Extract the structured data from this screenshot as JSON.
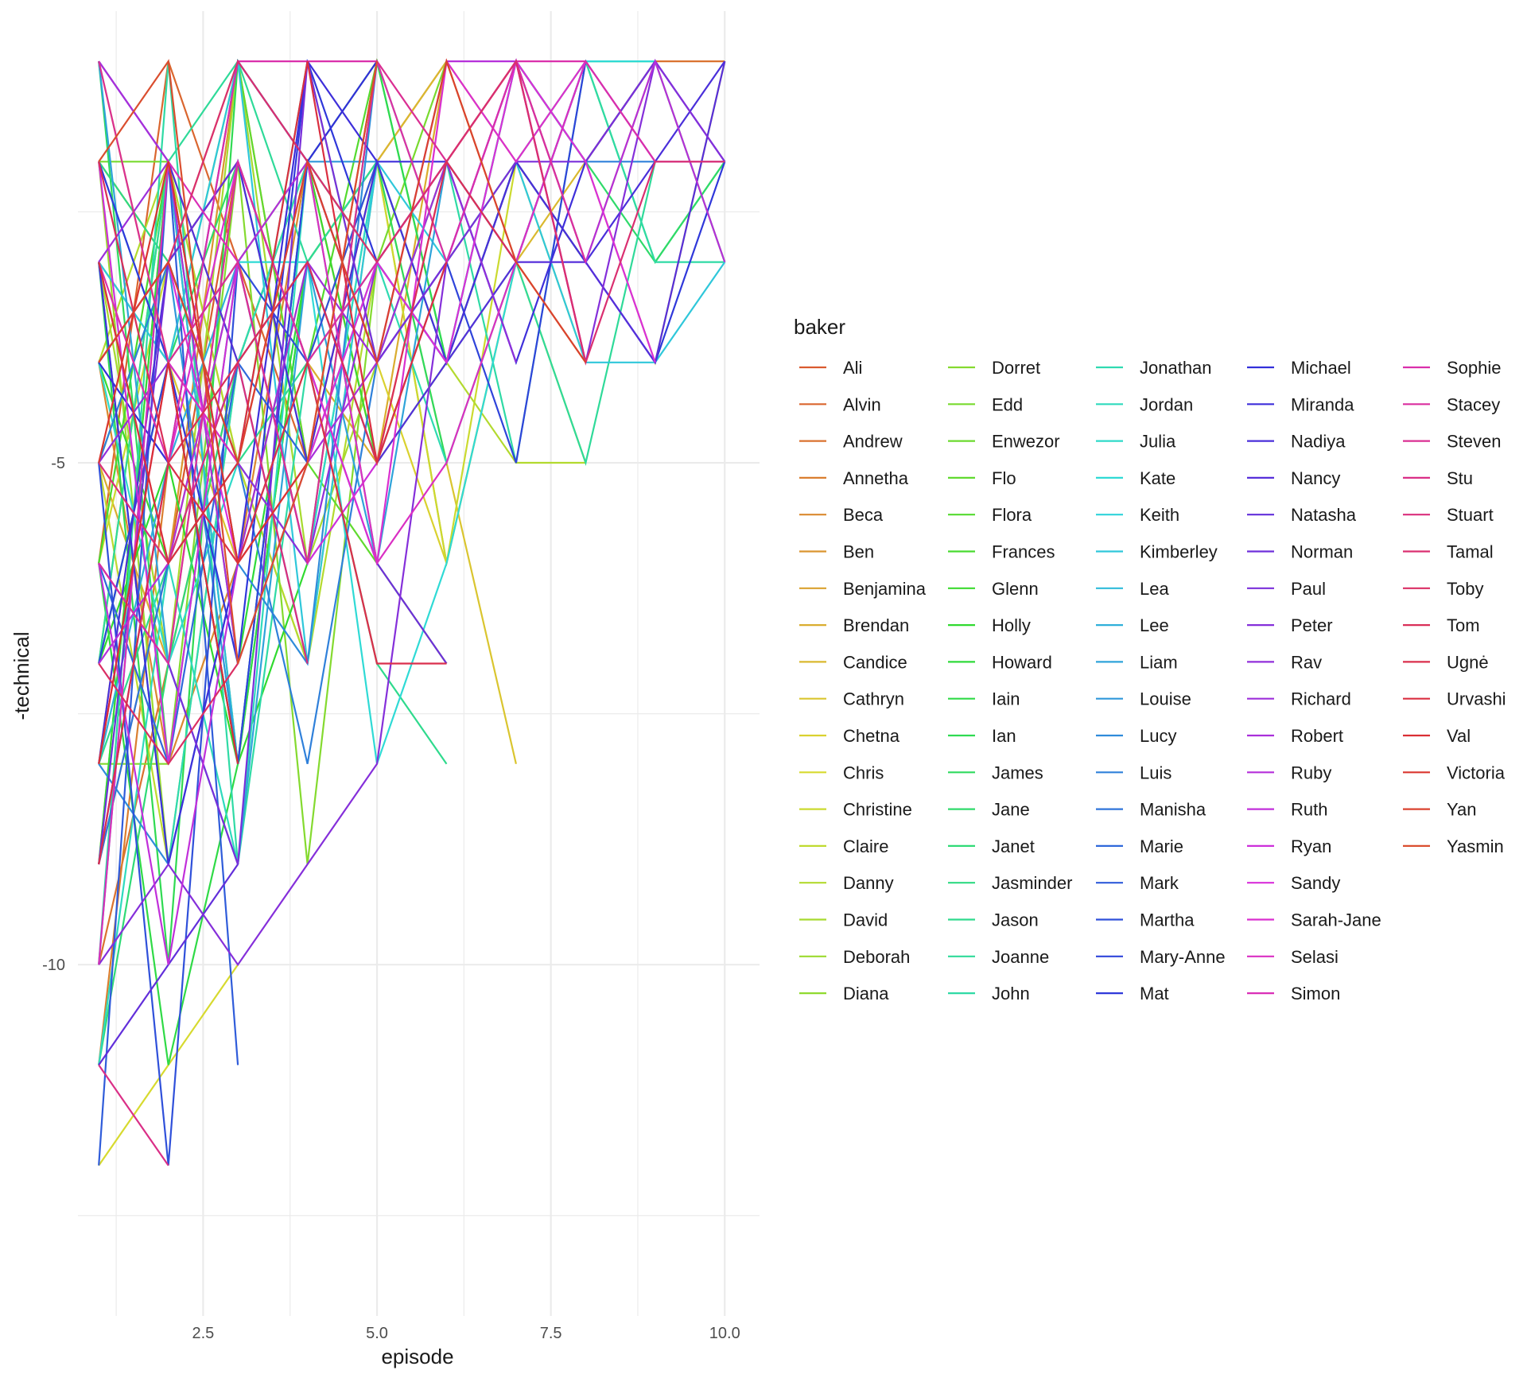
{
  "chart_data": {
    "type": "line",
    "xlabel": "episode",
    "ylabel": "-technical",
    "x_ticks": [
      2.5,
      5.0,
      7.5,
      10.0
    ],
    "x_tick_labels": [
      "2.5",
      "5.0",
      "7.5",
      "10.0"
    ],
    "y_ticks": [
      -5,
      -10
    ],
    "y_tick_labels": [
      "-5",
      "-10"
    ],
    "xlim": [
      0.7,
      10.5
    ],
    "ylim": [
      -13.5,
      -0.5
    ],
    "grid": true,
    "legend_title": "baker",
    "legend_position": "right",
    "bakers": [
      "Ali",
      "Alvin",
      "Andrew",
      "Annetha",
      "Beca",
      "Ben",
      "Benjamina",
      "Brendan",
      "Candice",
      "Cathryn",
      "Chetna",
      "Chris",
      "Christine",
      "Claire",
      "Danny",
      "David",
      "Deborah",
      "Diana",
      "Dorret",
      "Edd",
      "Enwezor",
      "Flo",
      "Flora",
      "Frances",
      "Glenn",
      "Holly",
      "Howard",
      "Iain",
      "Ian",
      "James",
      "Jane",
      "Janet",
      "Jasminder",
      "Jason",
      "Joanne",
      "John",
      "Jonathan",
      "Jordan",
      "Julia",
      "Kate",
      "Keith",
      "Kimberley",
      "Lea",
      "Lee",
      "Liam",
      "Louise",
      "Lucy",
      "Luis",
      "Manisha",
      "Marie",
      "Mark",
      "Martha",
      "Mary-Anne",
      "Mat",
      "Michael",
      "Miranda",
      "Nadiya",
      "Nancy",
      "Natasha",
      "Norman",
      "Paul",
      "Peter",
      "Rav",
      "Richard",
      "Robert",
      "Ruby",
      "Ruth",
      "Ryan",
      "Sandy",
      "Sarah-Jane",
      "Selasi",
      "Simon",
      "Sophie",
      "Stacey",
      "Steven",
      "Stu",
      "Stuart",
      "Tamal",
      "Toby",
      "Tom",
      "Ugnė",
      "Urvashi",
      "Val",
      "Victoria",
      "Yan",
      "Yasmin"
    ],
    "series": [
      {
        "name": "Ali",
        "values": [
          -3,
          -6,
          -2,
          -4,
          -7
        ]
      },
      {
        "name": "Alvin",
        "values": [
          -6,
          -1,
          -3,
          -5,
          -2,
          -1
        ]
      },
      {
        "name": "Andrew",
        "values": [
          -10,
          -7,
          -4,
          -2,
          -3,
          -2,
          -1,
          -2,
          -1,
          -1
        ]
      },
      {
        "name": "Annetha",
        "values": [
          -11,
          -5
        ]
      },
      {
        "name": "Beca",
        "values": [
          -4,
          -8,
          -6,
          -2,
          -5,
          -2,
          -3
        ]
      },
      {
        "name": "Ben",
        "values": [
          -9,
          -6,
          -1
        ]
      },
      {
        "name": "Benjamina",
        "values": [
          -2,
          -3,
          -1,
          -5,
          -2,
          -6,
          -3,
          -4
        ]
      },
      {
        "name": "Brendan",
        "values": [
          -5,
          -7,
          -2,
          -4,
          -5,
          -1,
          -2,
          -3,
          -1
        ]
      },
      {
        "name": "Candice",
        "values": [
          -9,
          -2,
          -5,
          -7,
          -2,
          -1,
          -3,
          -2,
          -4,
          -1
        ]
      },
      {
        "name": "Cathryn",
        "values": [
          -1,
          -4,
          -6,
          -3,
          -2,
          -5,
          -8
        ]
      },
      {
        "name": "Chetna",
        "values": [
          -8,
          -3,
          -5,
          -2,
          -4,
          -6,
          -3,
          -5
        ]
      },
      {
        "name": "Chris",
        "values": [
          -12,
          -11,
          -10
        ]
      },
      {
        "name": "Christine",
        "values": [
          -6,
          -3,
          -2,
          -4,
          -2,
          -6,
          -2,
          -4
        ]
      },
      {
        "name": "Claire",
        "values": [
          -5,
          -9
        ]
      },
      {
        "name": "Danny",
        "values": [
          -4,
          -2,
          -5,
          -7,
          -3,
          -4,
          -5,
          -5
        ]
      },
      {
        "name": "David",
        "values": [
          -3,
          -7,
          -1,
          -6,
          -4,
          -2,
          -1,
          -3
        ]
      },
      {
        "name": "Deborah",
        "values": [
          -2,
          -9,
          -4,
          -3
        ]
      },
      {
        "name": "Diana",
        "values": [
          -7,
          -2,
          -6,
          -4
        ]
      },
      {
        "name": "Dorret",
        "values": [
          -8,
          -8,
          -2,
          -9,
          -3
        ]
      },
      {
        "name": "Edd",
        "values": [
          -2,
          -2,
          -4,
          -2,
          -3,
          -1
        ]
      },
      {
        "name": "Enwezor",
        "values": [
          -7,
          -4,
          -8,
          -2
        ]
      },
      {
        "name": "Flo",
        "values": [
          -3,
          -4,
          -1,
          -5,
          -6,
          -7
        ]
      },
      {
        "name": "Flora",
        "values": [
          -5,
          -3,
          -2,
          -4,
          -1,
          -3,
          -2
        ]
      },
      {
        "name": "Frances",
        "values": [
          -6,
          -2,
          -8,
          -3,
          -2,
          -4,
          -1,
          -2,
          -1,
          -3
        ]
      },
      {
        "name": "Glenn",
        "values": [
          -4,
          -6,
          -3,
          -2,
          -5,
          -3
        ]
      },
      {
        "name": "Holly",
        "values": [
          -7,
          -5,
          -8,
          -6,
          -1,
          -4,
          -2,
          -3
        ]
      },
      {
        "name": "Howard",
        "values": [
          -9,
          -2,
          -7,
          -3,
          -5,
          -4
        ]
      },
      {
        "name": "Iain",
        "values": [
          -6,
          -11,
          -8,
          -3,
          -2
        ]
      },
      {
        "name": "Ian",
        "values": [
          -3,
          -10,
          -1,
          -2,
          -1,
          -4,
          -2,
          -1,
          -3,
          -2
        ]
      },
      {
        "name": "James",
        "values": [
          -1,
          -8,
          -3,
          -6,
          -2,
          -5,
          -3,
          -1,
          -1
        ]
      },
      {
        "name": "Jane",
        "values": [
          -7,
          -4,
          -2,
          -5,
          -3,
          -4,
          -1,
          -2,
          -3,
          -2
        ]
      },
      {
        "name": "Janet",
        "values": [
          -11,
          -7,
          -4,
          -2,
          -6
        ]
      },
      {
        "name": "Jasminder",
        "values": [
          -2,
          -3,
          -5,
          -1,
          -4,
          -2,
          -3,
          -1
        ]
      },
      {
        "name": "Jason",
        "values": [
          -8,
          -6,
          -5,
          -4,
          -7,
          -8
        ]
      },
      {
        "name": "Joanne",
        "values": [
          -7,
          -2,
          -1,
          -3,
          -2,
          -4,
          -3,
          -5,
          -2
        ]
      },
      {
        "name": "John",
        "values": [
          -10,
          -1,
          -9,
          -4,
          -3,
          -2,
          -5,
          -1,
          -3,
          -3
        ]
      },
      {
        "name": "Jonathan",
        "values": [
          -3,
          -9,
          -4,
          -2,
          -3,
          -5
        ]
      },
      {
        "name": "Jordan",
        "values": [
          -11,
          -6,
          -9,
          -2
        ]
      },
      {
        "name": "Julia",
        "values": [
          -4,
          -7,
          -5,
          -6,
          -2,
          -4,
          -1
        ]
      },
      {
        "name": "Kate",
        "values": [
          -2,
          -4,
          -3,
          -3,
          -8,
          -6,
          -3,
          -1,
          -1
        ]
      },
      {
        "name": "Keith",
        "values": [
          -9,
          -5
        ]
      },
      {
        "name": "Kimberley",
        "values": [
          -3,
          -4,
          -1,
          -7,
          -2,
          -3,
          -2,
          -4,
          -4,
          -3
        ]
      },
      {
        "name": "Lea",
        "values": [
          -10,
          -2,
          -8
        ]
      },
      {
        "name": "Lee",
        "values": [
          -8,
          -5,
          -3,
          -6
        ]
      },
      {
        "name": "Liam",
        "values": [
          -1,
          -7,
          -9,
          -3,
          -6,
          -2,
          -4
        ]
      },
      {
        "name": "Louise",
        "values": [
          -4,
          -3,
          -8,
          -2,
          -2
        ]
      },
      {
        "name": "Lucy",
        "values": [
          -8,
          -9,
          -6,
          -7,
          -1
        ]
      },
      {
        "name": "Luis",
        "values": [
          -5,
          -3,
          -5,
          -8,
          -4,
          -3,
          -1,
          -2,
          -2
        ]
      },
      {
        "name": "Manisha",
        "values": [
          -9,
          -6,
          -4,
          -7
        ]
      },
      {
        "name": "Marie",
        "values": [
          -6,
          -8,
          -4,
          -5
        ]
      },
      {
        "name": "Mark",
        "values": [
          -12,
          -2,
          -11
        ]
      },
      {
        "name": "Martha",
        "values": [
          -5,
          -12,
          -3,
          -4,
          -2
        ]
      },
      {
        "name": "Mary-Anne",
        "values": [
          -7,
          -4,
          -8,
          -2,
          -4,
          -3,
          -5,
          -1
        ]
      },
      {
        "name": "Mat",
        "values": [
          -2,
          -4,
          -7,
          -1,
          -3,
          -4,
          -2,
          -3,
          -4,
          -2
        ]
      },
      {
        "name": "Michael",
        "values": [
          -4,
          -5,
          -1,
          -2,
          -1
        ]
      },
      {
        "name": "Miranda",
        "values": [
          -3,
          -9,
          -6,
          -1,
          -2,
          -2,
          -4,
          -2,
          -1,
          -2
        ]
      },
      {
        "name": "Nadiya",
        "values": [
          -8,
          -3,
          -2,
          -5,
          -2,
          -4,
          -2,
          -3,
          -2,
          -1
        ]
      },
      {
        "name": "Nancy",
        "values": [
          -1,
          -2,
          -4,
          -3,
          -5,
          -4,
          -3,
          -3,
          -4,
          -1
        ]
      },
      {
        "name": "Natasha",
        "values": [
          -11,
          -10,
          -9
        ]
      },
      {
        "name": "Norman",
        "values": [
          -9,
          -3,
          -2,
          -4,
          -6,
          -7
        ]
      },
      {
        "name": "Paul",
        "values": [
          -6,
          -7,
          -9,
          -1,
          -4,
          -3,
          -2,
          -2,
          -1
        ]
      },
      {
        "name": "Peter",
        "values": [
          -10,
          -9,
          -10,
          -9,
          -8,
          -3,
          -1,
          -4,
          -1,
          -2
        ]
      },
      {
        "name": "Rav",
        "values": [
          -5,
          -4,
          -5,
          -6,
          -3,
          -2,
          -4
        ]
      },
      {
        "name": "Richard",
        "values": [
          -3,
          -2,
          -6,
          -3,
          -4,
          -2,
          -3,
          -1,
          -2,
          -2
        ]
      },
      {
        "name": "Robert",
        "values": [
          -1,
          -2,
          -7,
          -5,
          -4
        ]
      },
      {
        "name": "Ruby",
        "values": [
          -7,
          -6,
          -3,
          -2,
          -4,
          -1,
          -1,
          -3,
          -1,
          -3
        ]
      },
      {
        "name": "Ruth",
        "values": [
          -6,
          -10,
          -6
        ]
      },
      {
        "name": "Ryan",
        "values": [
          -2,
          -8,
          -3,
          -6,
          -5,
          -3,
          -1,
          -4
        ]
      },
      {
        "name": "Sandy",
        "values": [
          -4,
          -3,
          -6,
          -5,
          -3,
          -4,
          -1,
          -2,
          -4
        ]
      },
      {
        "name": "Sarah-Jane",
        "values": [
          -9,
          -5,
          -2,
          -4,
          -6,
          -1,
          -2,
          -1
        ]
      },
      {
        "name": "Selasi",
        "values": [
          -8,
          -4,
          -5,
          -2,
          -6,
          -5,
          -3,
          -1
        ]
      },
      {
        "name": "Simon",
        "values": [
          -10,
          -2,
          -3
        ]
      },
      {
        "name": "Sophie",
        "values": [
          -3,
          -5,
          -1,
          -1,
          -1,
          -3,
          -1,
          -1,
          -2
        ]
      },
      {
        "name": "Stacey",
        "values": [
          -6,
          -7,
          -2,
          -4,
          -3,
          -2,
          -1,
          -3
        ]
      },
      {
        "name": "Steven",
        "values": [
          -1,
          -4,
          -3,
          -6,
          -1,
          -2,
          -1,
          -4
        ]
      },
      {
        "name": "Stu",
        "values": [
          -11,
          -12
        ]
      },
      {
        "name": "Stuart",
        "values": [
          -5,
          -6,
          -4,
          -7
        ]
      },
      {
        "name": "Tamal",
        "values": [
          -4,
          -3,
          -1,
          -2,
          -3,
          -2,
          -1,
          -4,
          -2,
          -2
        ]
      },
      {
        "name": "Toby",
        "values": [
          -7,
          -8,
          -7
        ]
      },
      {
        "name": "Tom",
        "values": [
          -2,
          -5,
          -4,
          -3,
          -5,
          -2,
          -3
        ]
      },
      {
        "name": "Ugnė",
        "values": [
          -9,
          -5,
          -6,
          -4,
          -7,
          -7
        ]
      },
      {
        "name": "Urvashi",
        "values": [
          -3,
          -6,
          -5,
          -1,
          -5,
          -3
        ]
      },
      {
        "name": "Val",
        "values": [
          -8,
          -4,
          -8
        ]
      },
      {
        "name": "Victoria",
        "values": [
          -5,
          -2,
          -6,
          -5,
          -1
        ]
      },
      {
        "name": "Yan",
        "values": [
          -4,
          -3,
          -5,
          -2,
          -4,
          -1,
          -3,
          -4
        ]
      },
      {
        "name": "Yasmin",
        "values": [
          -2,
          -1,
          -7,
          -5,
          -1
        ]
      }
    ]
  }
}
